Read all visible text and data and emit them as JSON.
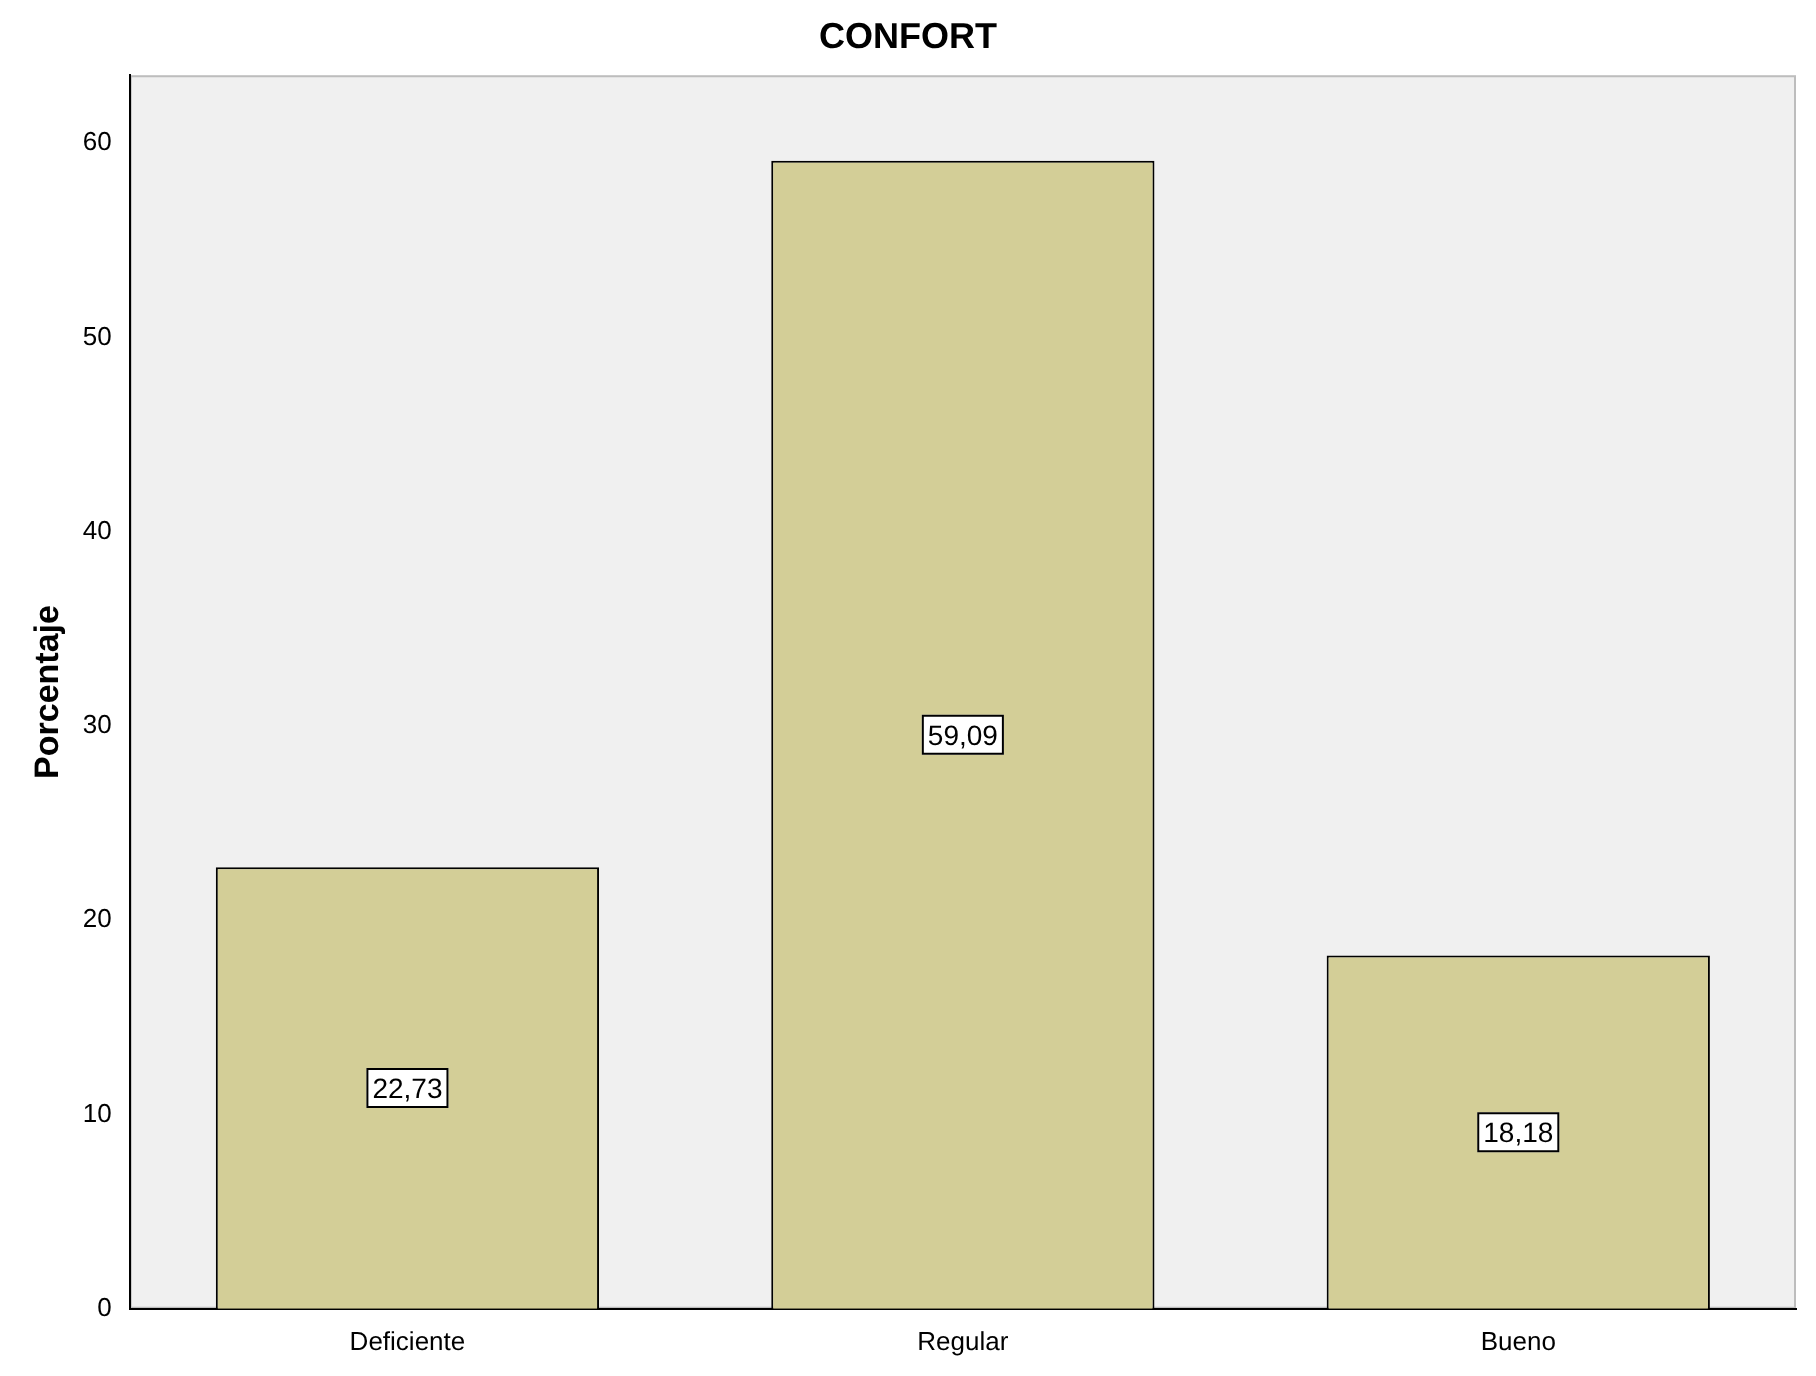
{
  "chart_data": {
    "type": "bar",
    "title": "CONFORT",
    "ylabel": "Porcentaje",
    "categories": [
      "Deficiente",
      "Regular",
      "Bueno"
    ],
    "values": [
      22.73,
      59.09,
      18.18
    ],
    "value_labels": [
      "22,73",
      "59,09",
      "18,18"
    ],
    "color": "#d3ce97",
    "ylim": [
      0,
      63.5
    ],
    "yticks": [
      0,
      10,
      20,
      30,
      40,
      50,
      60
    ],
    "grid": false,
    "legend": false
  }
}
